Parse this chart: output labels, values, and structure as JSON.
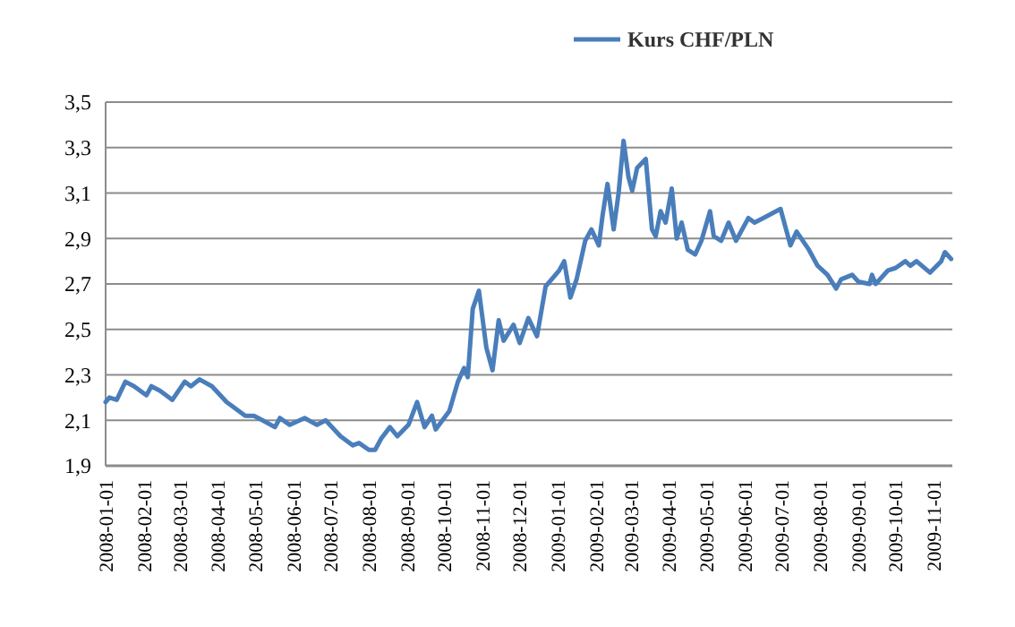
{
  "chart_data": {
    "type": "line",
    "x": [
      "2008-01-01",
      "2008-01-04",
      "2008-01-10",
      "2008-01-17",
      "2008-01-24",
      "2008-02-03",
      "2008-02-07",
      "2008-02-14",
      "2008-02-24",
      "2008-03-05",
      "2008-03-10",
      "2008-03-17",
      "2008-03-27",
      "2008-04-08",
      "2008-04-23",
      "2008-04-30",
      "2008-05-07",
      "2008-05-17",
      "2008-05-21",
      "2008-05-29",
      "2008-06-10",
      "2008-06-20",
      "2008-06-27",
      "2008-07-09",
      "2008-07-19",
      "2008-07-24",
      "2008-08-01",
      "2008-08-06",
      "2008-08-11",
      "2008-08-18",
      "2008-08-24",
      "2008-09-02",
      "2008-09-09",
      "2008-09-15",
      "2008-09-21",
      "2008-09-24",
      "2008-10-05",
      "2008-10-12",
      "2008-10-17",
      "2008-10-20",
      "2008-10-24",
      "2008-10-29",
      "2008-11-04",
      "2008-11-09",
      "2008-11-14",
      "2008-11-18",
      "2008-11-26",
      "2008-12-01",
      "2008-12-08",
      "2008-12-15",
      "2008-12-22",
      "2009-01-02",
      "2009-01-06",
      "2009-01-11",
      "2009-01-16",
      "2009-01-23",
      "2009-01-28",
      "2009-02-03",
      "2009-02-06",
      "2009-02-10",
      "2009-02-15",
      "2009-02-19",
      "2009-02-23",
      "2009-02-27",
      "2009-03-02",
      "2009-03-06",
      "2009-03-13",
      "2009-03-18",
      "2009-03-21",
      "2009-03-25",
      "2009-03-29",
      "2009-04-03",
      "2009-04-07",
      "2009-04-11",
      "2009-04-16",
      "2009-04-22",
      "2009-04-27",
      "2009-05-04",
      "2009-05-07",
      "2009-05-13",
      "2009-05-19",
      "2009-05-25",
      "2009-06-04",
      "2009-06-09",
      "2009-06-16",
      "2009-06-30",
      "2009-07-04",
      "2009-07-08",
      "2009-07-13",
      "2009-07-23",
      "2009-07-30",
      "2009-08-07",
      "2009-08-14",
      "2009-08-18",
      "2009-08-27",
      "2009-09-01",
      "2009-09-10",
      "2009-09-12",
      "2009-09-15",
      "2009-09-25",
      "2009-10-01",
      "2009-10-09",
      "2009-10-13",
      "2009-10-18",
      "2009-10-29",
      "2009-11-07",
      "2009-11-10",
      "2009-11-15"
    ],
    "series": [
      {
        "name": "Kurs CHF/PLN",
        "color": "#4a7ebb",
        "values": [
          2.18,
          2.2,
          2.19,
          2.27,
          2.25,
          2.21,
          2.25,
          2.23,
          2.19,
          2.27,
          2.25,
          2.28,
          2.25,
          2.18,
          2.12,
          2.12,
          2.1,
          2.07,
          2.11,
          2.08,
          2.11,
          2.08,
          2.1,
          2.03,
          1.99,
          2.0,
          1.97,
          1.97,
          2.02,
          2.07,
          2.03,
          2.08,
          2.18,
          2.07,
          2.12,
          2.06,
          2.14,
          2.27,
          2.33,
          2.29,
          2.59,
          2.67,
          2.42,
          2.32,
          2.54,
          2.45,
          2.52,
          2.44,
          2.55,
          2.47,
          2.69,
          2.76,
          2.8,
          2.64,
          2.72,
          2.89,
          2.94,
          2.87,
          3.0,
          3.14,
          2.94,
          3.1,
          3.33,
          3.17,
          3.11,
          3.21,
          3.25,
          2.94,
          2.91,
          3.02,
          2.97,
          3.12,
          2.9,
          2.97,
          2.85,
          2.83,
          2.89,
          3.02,
          2.91,
          2.89,
          2.97,
          2.89,
          2.99,
          2.97,
          2.99,
          3.03,
          2.95,
          2.87,
          2.93,
          2.85,
          2.78,
          2.74,
          2.68,
          2.72,
          2.74,
          2.71,
          2.7,
          2.74,
          2.7,
          2.76,
          2.77,
          2.8,
          2.78,
          2.8,
          2.75,
          2.8,
          2.84,
          2.81
        ]
      }
    ],
    "xlim": [
      "2008-01-01",
      "2009-11-16"
    ],
    "xticks": [
      "2008-01-01",
      "2008-02-01",
      "2008-03-01",
      "2008-04-01",
      "2008-05-01",
      "2008-06-01",
      "2008-07-01",
      "2008-08-01",
      "2008-09-01",
      "2008-10-01",
      "2008-11-01",
      "2008-12-01",
      "2009-01-01",
      "2009-02-01",
      "2009-03-01",
      "2009-04-01",
      "2009-05-01",
      "2009-06-01",
      "2009-07-01",
      "2009-08-01",
      "2009-09-01",
      "2009-10-01",
      "2009-11-01"
    ],
    "ylim": [
      1.9,
      3.5
    ],
    "yticks": [
      {
        "value": 1.9,
        "label": "1,9"
      },
      {
        "value": 2.1,
        "label": "2,1"
      },
      {
        "value": 2.3,
        "label": "2,3"
      },
      {
        "value": 2.5,
        "label": "2,5"
      },
      {
        "value": 2.7,
        "label": "2,7"
      },
      {
        "value": 2.9,
        "label": "2,9"
      },
      {
        "value": 3.1,
        "label": "3,1"
      },
      {
        "value": 3.3,
        "label": "3,3"
      },
      {
        "value": 3.5,
        "label": "3,5"
      }
    ],
    "grid": "y",
    "legend": "top",
    "marker": "none",
    "line_style": "solid"
  }
}
